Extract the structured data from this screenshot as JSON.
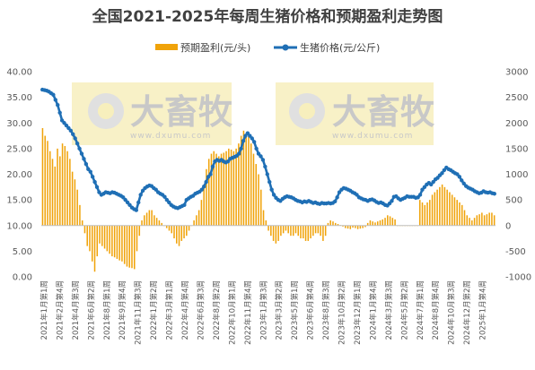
{
  "chart_data": {
    "type": "bar+line",
    "title": "全国2021-2025年每周生猪价格和预期盈利走势图",
    "series": [
      {
        "name": "预期盈利(元/头)",
        "type": "bar",
        "axis": "right",
        "color": "#f0a30a",
        "values": [
          1900,
          1750,
          1650,
          1450,
          1300,
          1150,
          1500,
          1350,
          1600,
          1550,
          1450,
          1300,
          1050,
          900,
          700,
          400,
          100,
          -150,
          -400,
          -500,
          -700,
          -900,
          -600,
          -350,
          -400,
          -450,
          -500,
          -550,
          -600,
          -620,
          -650,
          -680,
          -700,
          -750,
          -800,
          -820,
          -830,
          -850,
          -500,
          -200,
          100,
          200,
          250,
          300,
          300,
          200,
          150,
          100,
          50,
          0,
          -50,
          -100,
          -150,
          -250,
          -350,
          -400,
          -300,
          -250,
          -200,
          -100,
          0,
          100,
          200,
          300,
          500,
          800,
          1100,
          1300,
          1400,
          1450,
          1400,
          1350,
          1400,
          1420,
          1450,
          1500,
          1480,
          1450,
          1500,
          1600,
          1750,
          1850,
          1800,
          1750,
          1600,
          1400,
          1200,
          1000,
          700,
          300,
          100,
          -100,
          -200,
          -300,
          -350,
          -300,
          -200,
          -150,
          -100,
          -150,
          -200,
          -200,
          -150,
          -200,
          -250,
          -250,
          -300,
          -300,
          -250,
          -200,
          -150,
          -150,
          -200,
          -300,
          -200,
          50,
          100,
          80,
          50,
          30,
          10,
          -20,
          -50,
          -60,
          -70,
          -40,
          -50,
          -70,
          -60,
          -50,
          -30,
          50,
          100,
          80,
          60,
          80,
          100,
          120,
          150,
          200,
          180,
          150,
          120,
          0,
          0,
          0,
          0,
          0,
          0,
          0,
          0,
          0,
          500,
          450,
          400,
          450,
          500,
          600,
          650,
          700,
          750,
          800,
          750,
          700,
          650,
          600,
          550,
          500,
          450,
          400,
          300,
          200,
          150,
          100,
          150,
          200,
          220,
          250,
          200,
          220,
          250,
          250,
          200
        ]
      },
      {
        "name": "生猪价格(元/公斤)",
        "type": "line",
        "axis": "left",
        "color": "#1f6fb5",
        "values": [
          36.5,
          36.4,
          36.3,
          36.1,
          35.8,
          35.5,
          34.5,
          33.5,
          32.0,
          30.5,
          30.0,
          29.5,
          29.0,
          28.5,
          27.8,
          27.0,
          26.0,
          25.0,
          24.0,
          23.0,
          22.0,
          21.0,
          20.5,
          19.5,
          18.5,
          17.5,
          16.5,
          16.0,
          16.2,
          16.5,
          16.4,
          16.3,
          16.5,
          16.4,
          16.2,
          16.0,
          15.8,
          15.5,
          15.0,
          14.5,
          14.0,
          13.5,
          13.2,
          13.0,
          14.5,
          16.0,
          16.8,
          17.3,
          17.6,
          17.8,
          17.7,
          17.3,
          17.0,
          16.5,
          16.2,
          16.0,
          15.6,
          15.0,
          14.5,
          14.0,
          13.7,
          13.5,
          13.4,
          13.6,
          13.8,
          14.0,
          15.0,
          15.3,
          15.6,
          15.8,
          16.2,
          16.4,
          16.6,
          17.0,
          17.6,
          18.5,
          19.5,
          20.0,
          21.5,
          22.5,
          22.8,
          22.6,
          22.8,
          22.5,
          22.3,
          22.5,
          23.0,
          23.2,
          23.4,
          23.6,
          24.0,
          25.0,
          26.5,
          27.5,
          28.0,
          27.5,
          27.0,
          26.3,
          25.0,
          24.0,
          23.5,
          22.8,
          21.5,
          20.0,
          18.5,
          17.0,
          16.0,
          15.4,
          15.0,
          14.8,
          15.2,
          15.5,
          15.7,
          15.6,
          15.5,
          15.3,
          15.0,
          14.8,
          14.7,
          14.5,
          14.7,
          14.6,
          14.8,
          14.6,
          14.4,
          14.5,
          14.3,
          14.2,
          14.4,
          14.3,
          14.3,
          14.4,
          14.3,
          14.4,
          14.7,
          15.5,
          16.5,
          17.0,
          17.3,
          17.2,
          17.0,
          16.8,
          16.5,
          16.3,
          16.0,
          15.5,
          15.3,
          15.1,
          15.0,
          14.8,
          15.0,
          15.1,
          14.9,
          14.6,
          14.4,
          14.5,
          14.3,
          14.0,
          13.9,
          14.3,
          14.8,
          15.6,
          15.7,
          15.3,
          15.0,
          15.2,
          15.4,
          15.7,
          15.6,
          15.6,
          15.6,
          15.4,
          15.5,
          16.0,
          17.0,
          17.5,
          18.0,
          18.3,
          18.0,
          18.5,
          19.0,
          19.3,
          19.8,
          20.2,
          20.8,
          21.3,
          21.0,
          20.8,
          20.5,
          20.2,
          20.0,
          19.5,
          18.8,
          18.2,
          17.7,
          17.4,
          17.2,
          17.0,
          16.7,
          16.5,
          16.3,
          16.4,
          16.7,
          16.5,
          16.4,
          16.5,
          16.3,
          16.2
        ]
      }
    ],
    "left_axis": {
      "ylim": [
        0,
        40
      ],
      "ticks": [
        "0.00",
        "5.00",
        "10.00",
        "15.00",
        "20.00",
        "25.00",
        "30.00",
        "35.00",
        "40.00"
      ]
    },
    "right_axis": {
      "ylim": [
        -1000,
        3000
      ],
      "ticks": [
        "-1000",
        "-500",
        "0",
        "500",
        "1000",
        "1500",
        "2000",
        "2500",
        "3000"
      ]
    },
    "x_tick_labels": [
      "2021年1月第1周",
      "2021年2月第4周",
      "2021年4月第3周",
      "2021年6月第2周",
      "2021年8月第1周",
      "2021年9月第4周",
      "2021年11月第3周",
      "2022年1月第2周",
      "2022年3月第1周",
      "2022年4月第4周",
      "2022年6月第3周",
      "2022年8月第2周",
      "2022年10月第1周",
      "2022年11月第4周",
      "2023年1月第3周",
      "2023年3月第2周",
      "2023年5月第1周",
      "2023年6月第4周",
      "2023年8月第3周",
      "2023年10月第2周",
      "2023年12月第1周",
      "2024年1月第4周",
      "2024年3月第3周",
      "2024年5月第2周",
      "2024年7月第1周",
      "2024年8月第4周",
      "2024年10月第3周",
      "2024年12月第2周",
      "2025年1月第4周"
    ],
    "legend_position": "top",
    "grid": false
  },
  "watermark": {
    "brand": "大畜牧",
    "url": "www.dxumu.com"
  }
}
